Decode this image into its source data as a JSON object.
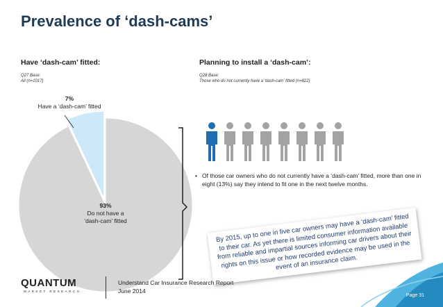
{
  "slide": {
    "title": "Prevalence of ‘dash-cams’",
    "page_label": "Page 31"
  },
  "left": {
    "heading": "Have ‘dash-cam’ fitted:",
    "base_q": "Q27 Base:",
    "base_n": "All (n=1017)"
  },
  "right": {
    "heading": "Planning to install a ‘dash-cam’:",
    "base_q": "Q28 Base:",
    "base_n": "Those who do not currently have a ‘dash-cam’ fitted (n=822)",
    "bullet": "Of those car owners who do not currently have a ‘dash-cam’ fitted, more than one in eight (13%) say they intend to fit one in the next twelve months.",
    "callout": "By 2015, up to one in five car owners may have a ‘dash-cam’ fitted to their car. As yet there is limited consumer information available from reliable and impartial sources informing car drivers about their rights on this issue or how recorded evidence may be used in the event of an insurance claim."
  },
  "people": {
    "total": 8,
    "highlighted": 1,
    "highlight_color": "#1f6fb0",
    "other_color": "#a3a3a3",
    "icon": "person-icon"
  },
  "chart_data": {
    "type": "pie",
    "slices": [
      {
        "value": 7,
        "pct_label": "7%",
        "label": "Have a ‘dash-cam’ fitted",
        "color": "#cde8f8"
      },
      {
        "value": 93,
        "pct_label": "93%",
        "label_line1": "Do not have a",
        "label_line2": "‘dash-cam’ fitted",
        "color": "#d6d6d6"
      }
    ]
  },
  "footer": {
    "logo": "QUANTUM",
    "logo_sub": "MARKET RESEARCH",
    "report_line1": "Understand Car Insurance Research Report",
    "report_line2": "June 2014"
  },
  "colors": {
    "title": "#1f3b53",
    "accent_wave": "#2fa6d9",
    "callout_text": "#1f3b6e"
  }
}
